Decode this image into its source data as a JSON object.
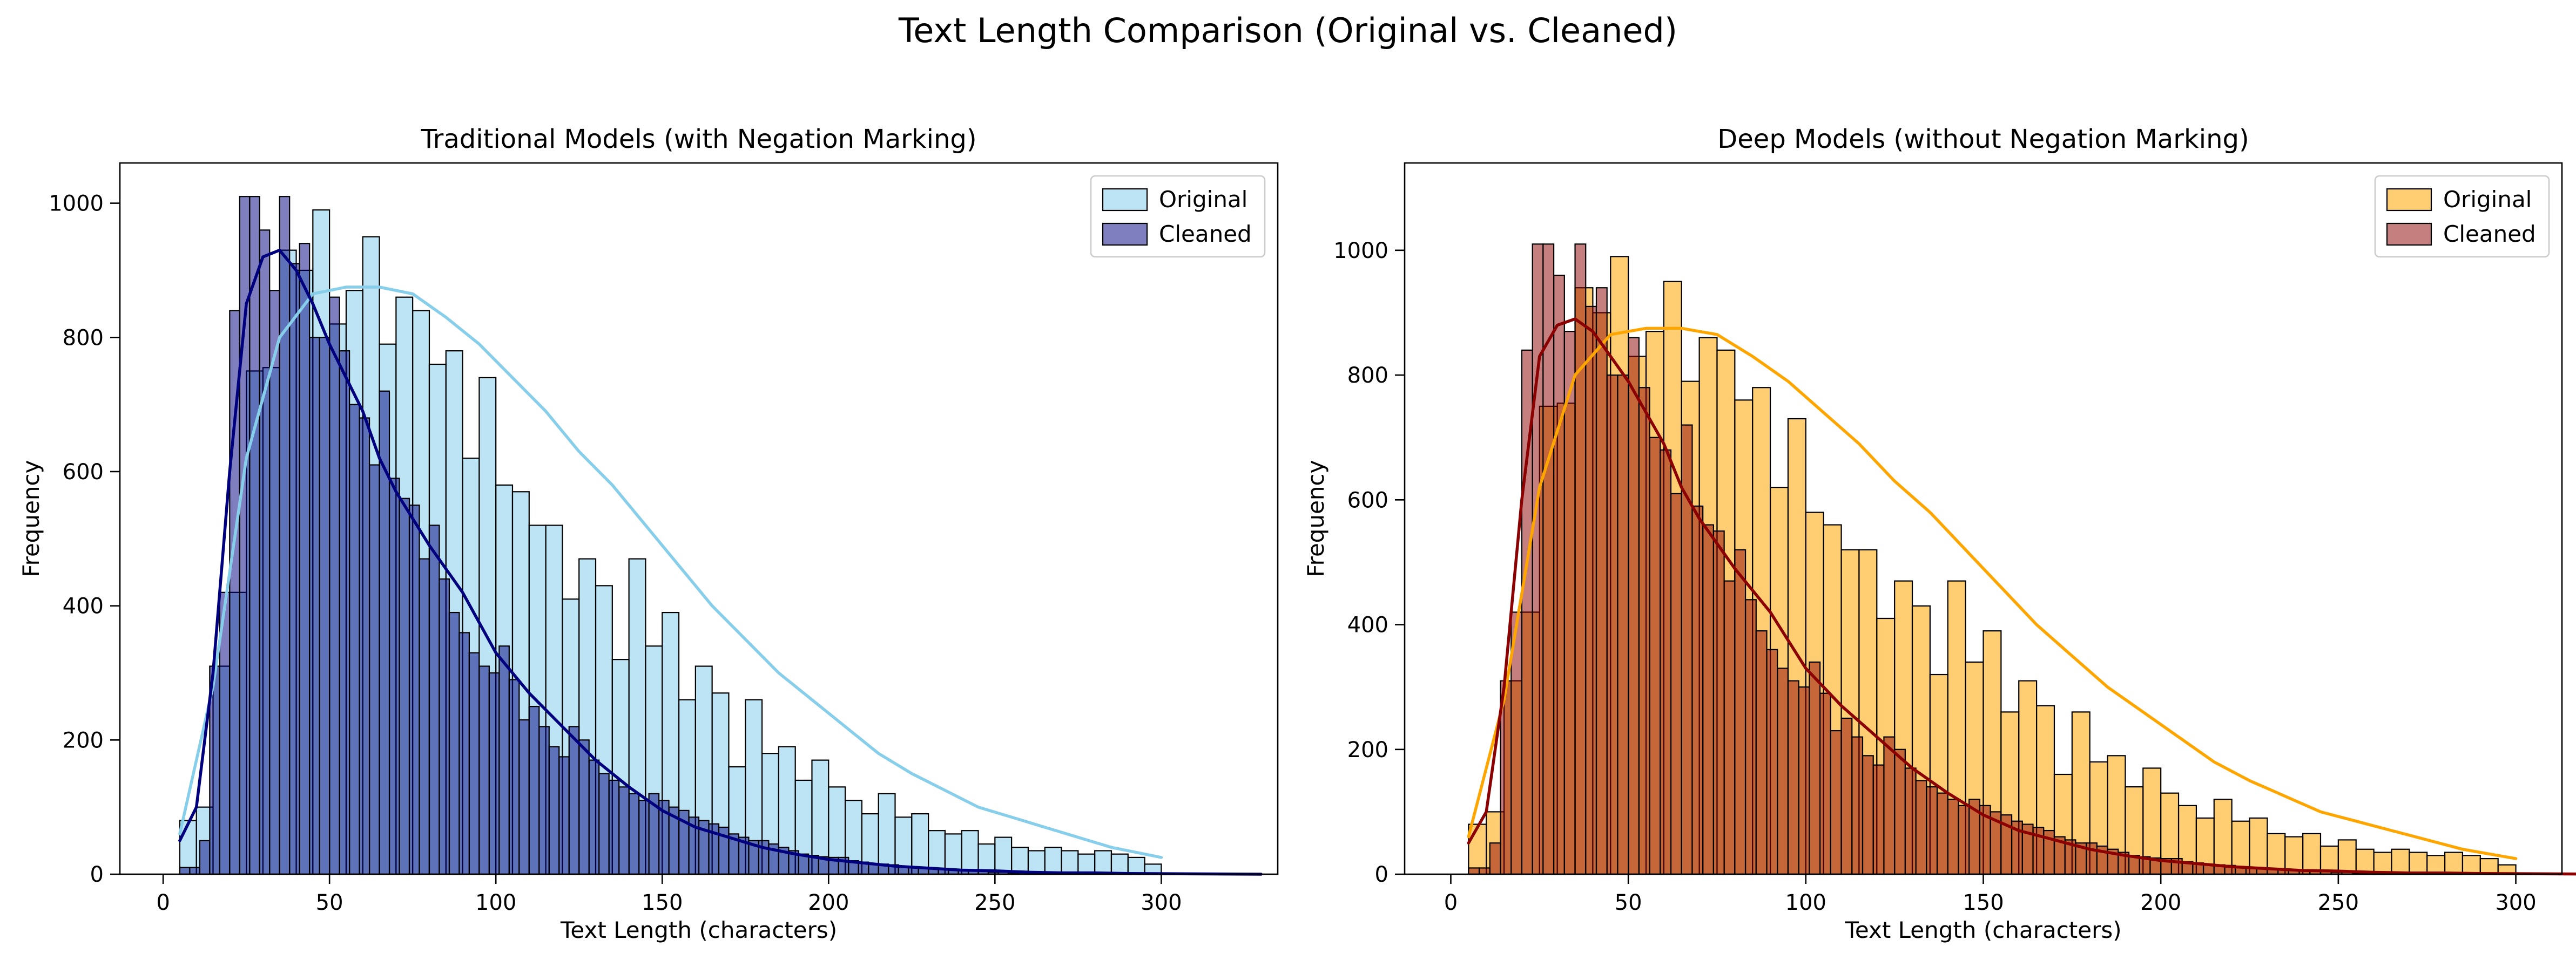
{
  "figure": {
    "suptitle": "Text Length Comparison (Original vs. Cleaned)"
  },
  "chart_data": [
    {
      "type": "histogram",
      "title": "Traditional Models (with Negation Marking)",
      "xlabel": "Text Length (characters)",
      "ylabel": "Frequency",
      "xlim": [
        -13,
        335
      ],
      "ylim": [
        0,
        1060
      ],
      "xticks": [
        0,
        50,
        100,
        150,
        200,
        250,
        300
      ],
      "yticks": [
        0,
        200,
        400,
        600,
        800,
        1000
      ],
      "legend_position": "top-right",
      "grid": false,
      "series": [
        {
          "name": "Original",
          "color": "#87ceeb",
          "bin_start": 5,
          "bin_width": 5,
          "values": [
            80,
            100,
            310,
            420,
            750,
            755,
            930,
            900,
            990,
            820,
            870,
            950,
            790,
            860,
            840,
            760,
            780,
            620,
            740,
            580,
            570,
            520,
            520,
            410,
            470,
            430,
            320,
            470,
            340,
            390,
            260,
            310,
            270,
            160,
            260,
            180,
            190,
            140,
            170,
            130,
            110,
            90,
            120,
            85,
            90,
            65,
            60,
            65,
            45,
            55,
            40,
            35,
            40,
            35,
            30,
            35,
            30,
            25,
            15
          ],
          "kde": [
            [
              5,
              60
            ],
            [
              15,
              280
            ],
            [
              25,
              620
            ],
            [
              35,
              800
            ],
            [
              45,
              865
            ],
            [
              55,
              875
            ],
            [
              65,
              875
            ],
            [
              75,
              865
            ],
            [
              85,
              830
            ],
            [
              95,
              790
            ],
            [
              105,
              740
            ],
            [
              115,
              690
            ],
            [
              125,
              630
            ],
            [
              135,
              580
            ],
            [
              145,
              520
            ],
            [
              155,
              460
            ],
            [
              165,
              400
            ],
            [
              175,
              350
            ],
            [
              185,
              300
            ],
            [
              195,
              260
            ],
            [
              205,
              220
            ],
            [
              215,
              180
            ],
            [
              225,
              150
            ],
            [
              235,
              125
            ],
            [
              245,
              100
            ],
            [
              255,
              85
            ],
            [
              265,
              70
            ],
            [
              275,
              55
            ],
            [
              285,
              40
            ],
            [
              295,
              30
            ],
            [
              300,
              25
            ]
          ]
        },
        {
          "name": "Cleaned",
          "color": "#00007f",
          "bin_start": 5,
          "bin_width": 3,
          "values": [
            10,
            10,
            50,
            310,
            420,
            840,
            1010,
            1010,
            960,
            870,
            1010,
            910,
            940,
            800,
            800,
            860,
            780,
            700,
            680,
            610,
            720,
            590,
            560,
            550,
            470,
            520,
            440,
            390,
            360,
            330,
            310,
            300,
            340,
            290,
            230,
            250,
            220,
            190,
            175,
            220,
            200,
            170,
            150,
            140,
            130,
            120,
            110,
            120,
            110,
            100,
            95,
            85,
            80,
            75,
            70,
            60,
            55,
            50,
            50,
            45,
            40,
            35,
            30,
            28,
            26,
            25,
            25,
            20,
            18,
            16,
            15,
            14,
            12,
            10,
            9,
            8,
            7,
            6,
            5,
            5,
            4,
            3,
            3,
            2,
            2,
            2,
            1,
            1,
            1,
            1,
            1,
            1,
            1,
            1,
            1
          ],
          "kde": [
            [
              5,
              50
            ],
            [
              10,
              100
            ],
            [
              15,
              300
            ],
            [
              20,
              600
            ],
            [
              25,
              850
            ],
            [
              30,
              920
            ],
            [
              35,
              930
            ],
            [
              40,
              900
            ],
            [
              45,
              850
            ],
            [
              50,
              790
            ],
            [
              55,
              740
            ],
            [
              60,
              690
            ],
            [
              65,
              620
            ],
            [
              70,
              570
            ],
            [
              80,
              490
            ],
            [
              90,
              420
            ],
            [
              100,
              330
            ],
            [
              110,
              270
            ],
            [
              120,
              220
            ],
            [
              130,
              170
            ],
            [
              140,
              130
            ],
            [
              150,
              95
            ],
            [
              160,
              70
            ],
            [
              170,
              55
            ],
            [
              180,
              40
            ],
            [
              190,
              30
            ],
            [
              200,
              22
            ],
            [
              210,
              17
            ],
            [
              220,
              12
            ],
            [
              230,
              9
            ],
            [
              240,
              6
            ],
            [
              250,
              5
            ],
            [
              260,
              3
            ],
            [
              270,
              2
            ],
            [
              280,
              2
            ],
            [
              290,
              1
            ],
            [
              330,
              0
            ]
          ]
        }
      ]
    },
    {
      "type": "histogram",
      "title": "Deep Models (without Negation Marking)",
      "xlabel": "Text Length (characters)",
      "ylabel": "Frequency",
      "xlim": [
        -13,
        313
      ],
      "ylim": [
        0,
        1140
      ],
      "xticks": [
        0,
        50,
        100,
        150,
        200,
        250,
        300
      ],
      "yticks": [
        0,
        200,
        400,
        600,
        800,
        1000
      ],
      "legend_position": "top-right",
      "grid": false,
      "series": [
        {
          "name": "Original",
          "color": "#ffa500",
          "bin_start": 5,
          "bin_width": 5,
          "values": [
            80,
            100,
            310,
            420,
            750,
            755,
            940,
            900,
            990,
            830,
            870,
            950,
            790,
            860,
            840,
            760,
            780,
            620,
            730,
            580,
            560,
            520,
            520,
            410,
            470,
            430,
            320,
            470,
            340,
            390,
            260,
            310,
            270,
            160,
            260,
            180,
            190,
            140,
            170,
            130,
            110,
            90,
            120,
            85,
            90,
            65,
            60,
            65,
            45,
            55,
            40,
            35,
            40,
            35,
            30,
            35,
            30,
            25,
            15
          ],
          "kde": [
            [
              5,
              60
            ],
            [
              15,
              280
            ],
            [
              25,
              620
            ],
            [
              35,
              800
            ],
            [
              45,
              865
            ],
            [
              55,
              875
            ],
            [
              65,
              875
            ],
            [
              75,
              865
            ],
            [
              85,
              830
            ],
            [
              95,
              790
            ],
            [
              105,
              740
            ],
            [
              115,
              690
            ],
            [
              125,
              630
            ],
            [
              135,
              580
            ],
            [
              145,
              520
            ],
            [
              155,
              460
            ],
            [
              165,
              400
            ],
            [
              175,
              350
            ],
            [
              185,
              300
            ],
            [
              195,
              260
            ],
            [
              205,
              220
            ],
            [
              215,
              180
            ],
            [
              225,
              150
            ],
            [
              235,
              125
            ],
            [
              245,
              100
            ],
            [
              255,
              85
            ],
            [
              265,
              70
            ],
            [
              275,
              55
            ],
            [
              285,
              40
            ],
            [
              295,
              30
            ],
            [
              300,
              25
            ]
          ]
        },
        {
          "name": "Cleaned",
          "color": "#8b0000",
          "bin_start": 5,
          "bin_width": 3,
          "values": [
            10,
            10,
            50,
            310,
            420,
            840,
            1010,
            1010,
            960,
            870,
            1010,
            910,
            940,
            800,
            800,
            860,
            780,
            700,
            680,
            610,
            720,
            590,
            560,
            550,
            470,
            520,
            440,
            390,
            360,
            330,
            310,
            300,
            340,
            290,
            230,
            250,
            220,
            190,
            175,
            220,
            200,
            170,
            150,
            140,
            130,
            120,
            110,
            120,
            110,
            100,
            95,
            85,
            80,
            75,
            70,
            60,
            55,
            50,
            50,
            45,
            40,
            35,
            30,
            28,
            26,
            25,
            25,
            20,
            18,
            16,
            15,
            14,
            12,
            10,
            9,
            8,
            7,
            6,
            5,
            5,
            4,
            3,
            3,
            2,
            2,
            2,
            1,
            1,
            1,
            1,
            1,
            1,
            1,
            1,
            1
          ],
          "kde": [
            [
              5,
              50
            ],
            [
              10,
              100
            ],
            [
              15,
              300
            ],
            [
              20,
              600
            ],
            [
              25,
              830
            ],
            [
              30,
              880
            ],
            [
              35,
              890
            ],
            [
              40,
              870
            ],
            [
              45,
              830
            ],
            [
              50,
              790
            ],
            [
              55,
              740
            ],
            [
              60,
              690
            ],
            [
              65,
              620
            ],
            [
              70,
              570
            ],
            [
              80,
              490
            ],
            [
              90,
              420
            ],
            [
              100,
              330
            ],
            [
              110,
              270
            ],
            [
              120,
              220
            ],
            [
              130,
              170
            ],
            [
              140,
              130
            ],
            [
              150,
              95
            ],
            [
              160,
              70
            ],
            [
              170,
              55
            ],
            [
              180,
              40
            ],
            [
              190,
              30
            ],
            [
              200,
              22
            ],
            [
              210,
              17
            ],
            [
              220,
              12
            ],
            [
              230,
              9
            ],
            [
              240,
              6
            ],
            [
              250,
              5
            ],
            [
              260,
              3
            ],
            [
              270,
              2
            ],
            [
              280,
              2
            ],
            [
              290,
              1
            ],
            [
              330,
              0
            ]
          ]
        }
      ]
    }
  ]
}
